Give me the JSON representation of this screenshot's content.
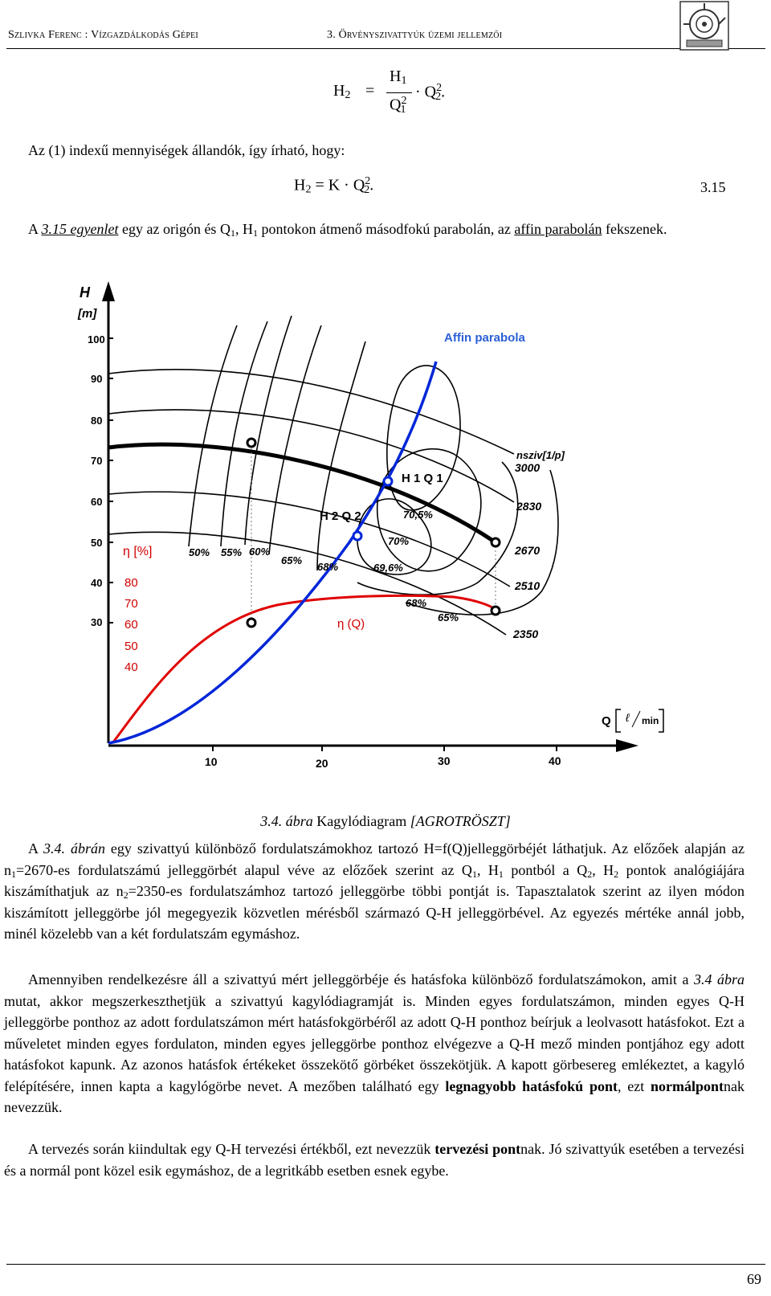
{
  "header": {
    "left": "Szlivka Ferenc : Vízgazdálkodás Gépei",
    "right": "3. Örvényszivattyúk üzemi jellemzői"
  },
  "eq1": {
    "lhs": "H",
    "lhs_sub": "2",
    "num": "H",
    "num_sub": "1",
    "den": "Q",
    "den_sup": "2",
    "den_sub": "1",
    "q": "Q",
    "q_sup": "2",
    "q_sub": "2",
    "end": "."
  },
  "intro": "Az (1) indexű mennyiségek állandók, így írható, hogy:",
  "eq2": {
    "text_h": "H",
    "h_sub": "2",
    "eq": "= K · Q",
    "q_sup": "2",
    "q_sub": "2",
    "end": ".",
    "number": "3.15"
  },
  "p1": {
    "a": "A ",
    "link": "3.15 egyenlet",
    "b": " egy az origón és Q",
    "sub1": "1",
    "c": ", H",
    "sub2": "1",
    "d": " pontokon átmenő másodfokú parabolán, az ",
    "link2": "affin parabolán",
    "e": " fekszenek."
  },
  "chart": {
    "y_axis_label": "H",
    "y_unit": "[m]",
    "y_ticks": [
      "100",
      "90",
      "80",
      "70",
      "60",
      "50",
      "40",
      "30"
    ],
    "eta_label": "η [%]",
    "eta_ticks": [
      "80",
      "70",
      "60",
      "50",
      "40"
    ],
    "x_ticks": [
      "10",
      "20",
      "30",
      "40"
    ],
    "x_label": "Q",
    "x_unit_num": "ℓ",
    "x_unit_den": "min",
    "affin_label": "Affin parabola",
    "h1q1": "H 1 Q 1",
    "h2q2": "H 2 Q 2",
    "eta_q": "η (Q)",
    "n_label": "nsziv[1/p]",
    "speeds": [
      "3000",
      "2830",
      "2670",
      "2510",
      "2350"
    ],
    "eff_labels": [
      "50%",
      "55%",
      "60%",
      "65%",
      "68%",
      "70,5%",
      "70%",
      "69,6%",
      "68%",
      "65%"
    ]
  },
  "caption": {
    "a": "3.4. ",
    "b": "ábra",
    "c": " Kagylódiagram ",
    "d": "[AGROTRÖSZT]"
  },
  "p2": {
    "t1": "A ",
    "ref": "3.4. ábrán",
    "t2": " egy szivattyú különböző fordulatszámokhoz tartozó H=f(Q)jelleggörbéjét láthatjuk. Az előzőek alapján az n",
    "s1": "1",
    "t3": "=2670-es fordulatszámú jelleggörbét alapul véve az előzőek szerint az Q",
    "s2": "1",
    "t4": ", H",
    "s3": "1",
    "t5": " pontból a Q",
    "s4": "2",
    "t6": ", H",
    "s5": "2",
    "t7": " pontok analógiájára kiszámíthatjuk az n",
    "s6": "2",
    "t8": "=2350-es fordulatszámhoz tartozó jelleggörbe többi pontját is. Tapasztalatok szerint az ilyen módon kiszámított jelleggörbe jól megegyezik közvetlen mérésből származó Q-H jelleggörbével. Az egyezés mértéke annál jobb, minél közelebb van a két fordulatszám egymáshoz."
  },
  "p3": {
    "t1": "Amennyiben rendelkezésre áll a szivattyú mért jelleggörbéje és hatásfoka különböző fordulatszámokon, amit a ",
    "ref": "3.4 ábra",
    "t2": " mutat, akkor megszerkeszthetjük a szivattyú kagylódiagramját is. Minden egyes fordulatszámon, minden egyes  Q-H jelleggörbe ponthoz az adott fordulatszámon mért hatásfokgörbéről az adott Q-H ponthoz beírjuk a leolvasott hatásfokot. Ezt a műveletet minden egyes fordulaton, minden egyes jelleggörbe ponthoz elvégezve a Q-H mező minden pontjához egy adott hatásfokot kapunk. Az azonos hatásfok értékeket összekötő görbéket összekötjük. A kapott görbesereg emlékeztet, a kagyló felépítésére, innen kapta a kagylógörbe nevet. A mezőben található egy ",
    "b1": "legnagyobb hatásfokú pont",
    "t3": ", ezt ",
    "b2": "normálpont",
    "t4": "nak nevezzük."
  },
  "p4": {
    "t1": "A tervezés során kiindultak egy Q-H tervezési értékből, ezt nevezzük ",
    "b1": "tervezési pont",
    "t2": "nak. Jó szivattyúk esetében a tervezési és a normál pont közel esik egymáshoz, de a legritkább esetben esnek egybe."
  },
  "page_number": "69"
}
